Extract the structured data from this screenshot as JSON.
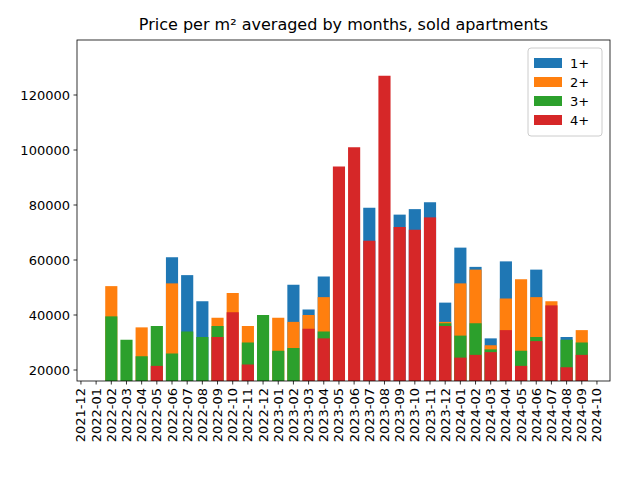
{
  "chart_data": {
    "type": "bar",
    "title": "Price per m² averaged by months, sold apartments",
    "categories": [
      "2021-12",
      "2022-01",
      "2022-02",
      "2022-03",
      "2022-04",
      "2022-05",
      "2022-06",
      "2022-07",
      "2022-08",
      "2022-09",
      "2022-10",
      "2022-11",
      "2022-12",
      "2023-01",
      "2023-02",
      "2023-03",
      "2023-04",
      "2023-05",
      "2023-06",
      "2023-07",
      "2023-08",
      "2023-09",
      "2023-10",
      "2023-11",
      "2023-12",
      "2024-01",
      "2024-02",
      "2024-03",
      "2024-04",
      "2024-05",
      "2024-06",
      "2024-07",
      "2024-08",
      "2024-09",
      "2024-10"
    ],
    "series": [
      {
        "name": "1+",
        "color": "#1f77b4",
        "values": [
          null,
          null,
          null,
          null,
          null,
          null,
          61000,
          54500,
          45000,
          null,
          null,
          null,
          null,
          null,
          51000,
          42000,
          54000,
          null,
          null,
          79000,
          null,
          76500,
          78500,
          81000,
          44500,
          64500,
          57500,
          31500,
          59500,
          null,
          56500,
          null,
          32000,
          null,
          null
        ]
      },
      {
        "name": "2+",
        "color": "#ff7f0e",
        "values": [
          null,
          null,
          50500,
          null,
          35500,
          null,
          51500,
          null,
          null,
          39000,
          48000,
          36000,
          null,
          39000,
          37500,
          40000,
          46500,
          null,
          null,
          null,
          null,
          null,
          null,
          null,
          37500,
          51500,
          56500,
          29000,
          46000,
          53000,
          46500,
          45000,
          null,
          34500,
          null
        ]
      },
      {
        "name": "3+",
        "color": "#2ca02c",
        "values": [
          null,
          null,
          39500,
          31000,
          25000,
          36000,
          26000,
          34000,
          32000,
          36000,
          null,
          30000,
          40000,
          27000,
          28000,
          null,
          34000,
          null,
          null,
          null,
          null,
          null,
          null,
          null,
          37000,
          32500,
          37000,
          27500,
          null,
          27000,
          32000,
          null,
          31000,
          30000,
          null
        ]
      },
      {
        "name": "4+",
        "color": "#d62728",
        "values": [
          null,
          null,
          null,
          null,
          null,
          21500,
          null,
          null,
          null,
          32000,
          41000,
          22000,
          null,
          null,
          null,
          35000,
          31500,
          94000,
          101000,
          67000,
          127000,
          72000,
          71000,
          75500,
          36000,
          24500,
          25500,
          26500,
          34500,
          21500,
          30500,
          43500,
          21000,
          25500,
          null
        ]
      }
    ],
    "stacked": false,
    "ylim": [
      16000,
      140000
    ],
    "yticks": [
      20000,
      40000,
      60000,
      80000,
      100000,
      120000
    ],
    "grid": false,
    "legend": "upper right"
  }
}
